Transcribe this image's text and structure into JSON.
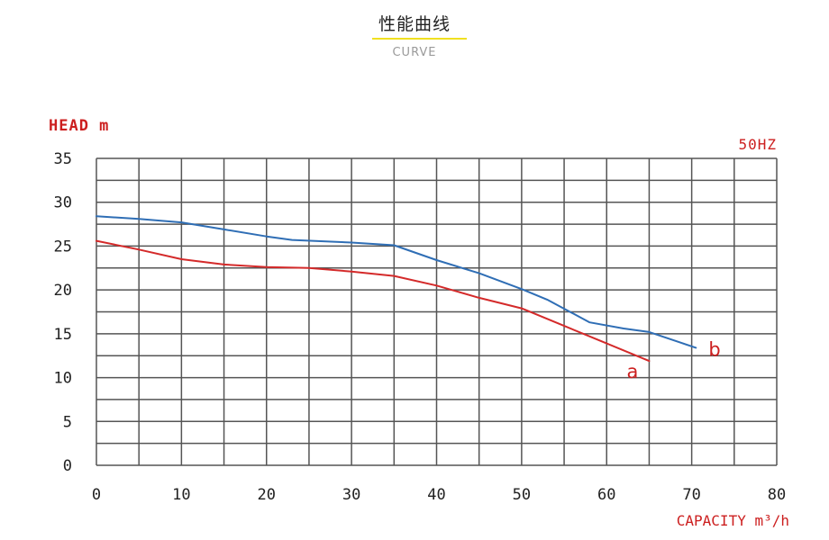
{
  "header": {
    "title": "性能曲线",
    "subtitle": "CURVE"
  },
  "chart_data": {
    "type": "line",
    "title": "",
    "xlabel": "CAPACITY m³/h",
    "ylabel": "HEAD m",
    "frequency_label": "50HZ",
    "xlim": [
      0,
      80
    ],
    "ylim": [
      0,
      35
    ],
    "x_ticks": [
      "0",
      "10",
      "20",
      "30",
      "40",
      "50",
      "60",
      "70",
      "80"
    ],
    "y_ticks": [
      "0",
      "5",
      "10",
      "15",
      "20",
      "25",
      "30",
      "35"
    ],
    "grid": true,
    "colors": {
      "axis_text": "#222222",
      "label": "#cc1f1f",
      "grid": "#555555",
      "series_a": "#d42a2a",
      "series_b": "#2f6eb5"
    },
    "series": [
      {
        "name": "a",
        "x": [
          0,
          5,
          10,
          15,
          20,
          25,
          30,
          35,
          40,
          45,
          50,
          55,
          60,
          65
        ],
        "y": [
          25.6,
          24.6,
          23.5,
          22.9,
          22.6,
          22.5,
          22.1,
          21.6,
          20.5,
          19.1,
          17.9,
          15.9,
          13.9,
          11.9
        ]
      },
      {
        "name": "b",
        "x": [
          0,
          5,
          10,
          15,
          20,
          23,
          30,
          35,
          40,
          45,
          50,
          53,
          58,
          62,
          65,
          70.5
        ],
        "y": [
          28.4,
          28.1,
          27.7,
          26.9,
          26.1,
          25.7,
          25.4,
          25.1,
          23.4,
          21.9,
          20.1,
          18.9,
          16.3,
          15.6,
          15.2,
          13.4
        ]
      }
    ]
  }
}
